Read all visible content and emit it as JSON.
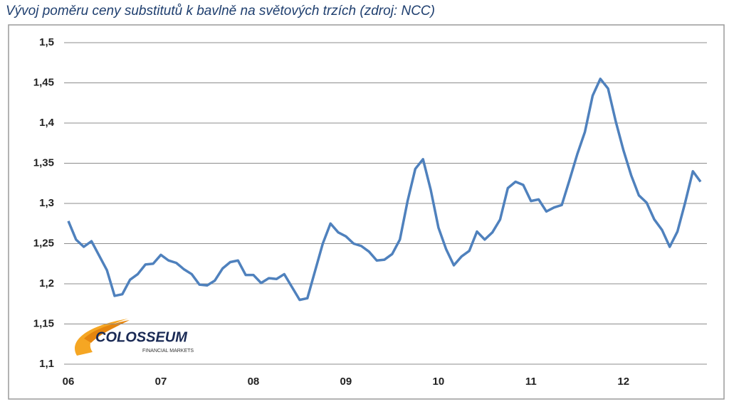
{
  "chart_data": {
    "type": "line",
    "title": "Vývoj poměru ceny substitutů k bavlně na světových trzích (zdroj: NCC)",
    "categories": [
      "06",
      null,
      null,
      null,
      null,
      null,
      null,
      null,
      null,
      null,
      null,
      null,
      "07",
      null,
      null,
      null,
      null,
      null,
      null,
      null,
      null,
      null,
      null,
      null,
      "08",
      null,
      null,
      null,
      null,
      null,
      null,
      null,
      null,
      null,
      null,
      null,
      "09",
      null,
      null,
      null,
      null,
      null,
      null,
      null,
      null,
      null,
      null,
      null,
      "10",
      null,
      null,
      null,
      null,
      null,
      null,
      null,
      null,
      null,
      null,
      null,
      "11",
      null,
      null,
      null,
      null,
      null,
      null,
      null,
      null,
      null,
      null,
      null,
      "12",
      null,
      null,
      null,
      null,
      null,
      null,
      null,
      null,
      null,
      null
    ],
    "values": [
      1.278,
      1.255,
      1.246,
      1.253,
      1.235,
      1.217,
      1.185,
      1.187,
      1.205,
      1.212,
      1.224,
      1.225,
      1.236,
      1.229,
      1.226,
      1.218,
      1.212,
      1.199,
      1.198,
      1.204,
      1.219,
      1.227,
      1.229,
      1.211,
      1.211,
      1.201,
      1.207,
      1.206,
      1.212,
      1.196,
      1.18,
      1.182,
      1.216,
      1.25,
      1.275,
      1.264,
      1.259,
      1.25,
      1.247,
      1.24,
      1.229,
      1.23,
      1.237,
      1.255,
      1.303,
      1.343,
      1.355,
      1.317,
      1.27,
      1.243,
      1.223,
      1.234,
      1.241,
      1.265,
      1.255,
      1.264,
      1.28,
      1.319,
      1.327,
      1.323,
      1.303,
      1.305,
      1.29,
      1.295,
      1.298,
      1.329,
      1.361,
      1.389,
      1.434,
      1.455,
      1.443,
      1.402,
      1.366,
      1.335,
      1.31,
      1.301,
      1.28,
      1.267,
      1.246,
      1.265,
      1.301,
      1.34,
      1.327
    ],
    "color": "#4f81bd",
    "ylim": [
      1.1,
      1.5
    ],
    "yticks": [
      {
        "value": 1.1,
        "label": "1,1"
      },
      {
        "value": 1.15,
        "label": "1,15"
      },
      {
        "value": 1.2,
        "label": "1,2"
      },
      {
        "value": 1.25,
        "label": "1,25"
      },
      {
        "value": 1.3,
        "label": "1,3"
      },
      {
        "value": 1.35,
        "label": "1,35"
      },
      {
        "value": 1.4,
        "label": "1,4"
      },
      {
        "value": 1.45,
        "label": "1,45"
      },
      {
        "value": 1.5,
        "label": "1,5"
      }
    ],
    "grid": true
  },
  "logo": {
    "name": "COLOSSEUM",
    "tagline": "FINANCIAL MARKETS"
  }
}
